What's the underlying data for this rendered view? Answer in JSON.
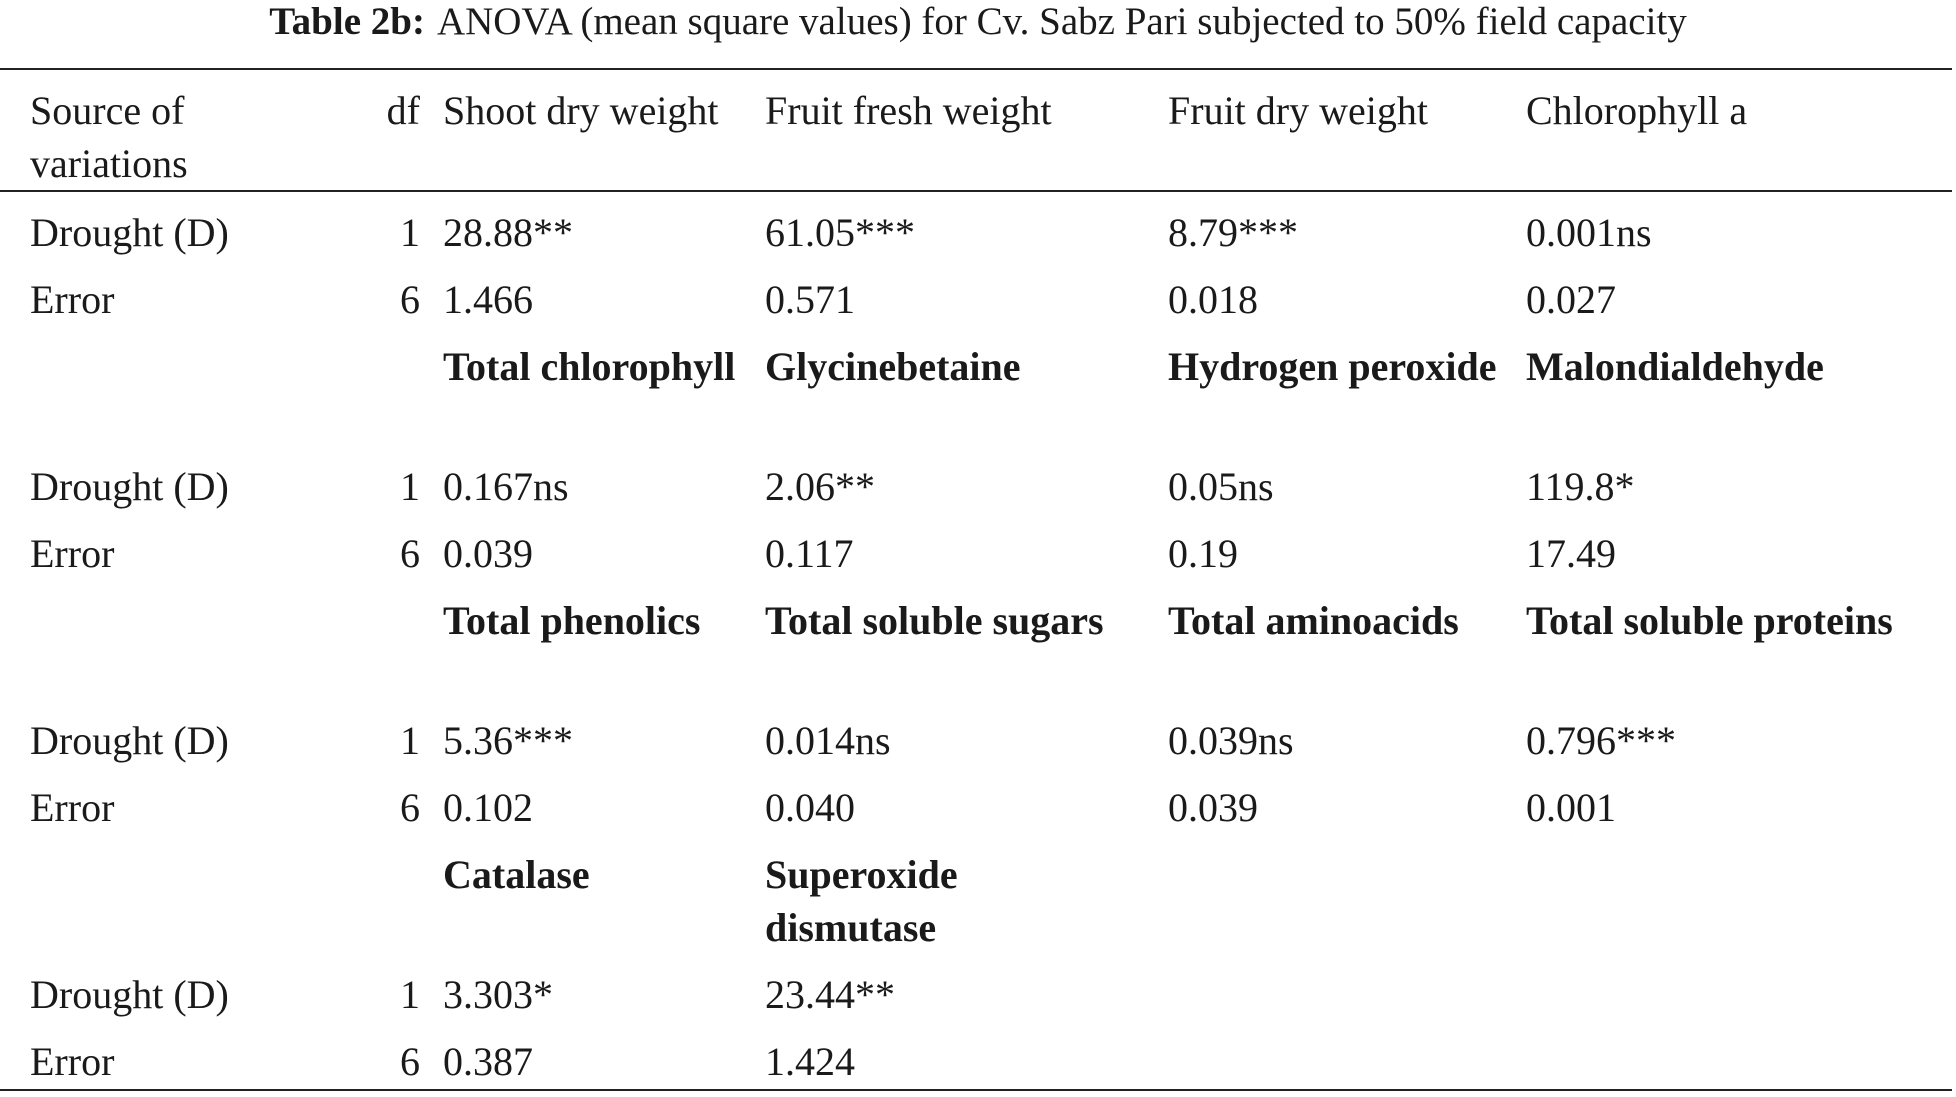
{
  "caption": {
    "label": "Table 2b:",
    "text": "ANOVA (mean square values) for Cv. Sabz Pari subjected to 50% field capacity"
  },
  "table": {
    "header": {
      "source": "Source of variations",
      "df": "df"
    },
    "sections": [
      {
        "variables": [
          "Shoot dry weight",
          "Fruit fresh weight",
          "Fruit dry weight",
          "Chlorophyll a"
        ],
        "rows": [
          {
            "source": "Drought (D)",
            "df": 1,
            "values": [
              "28.88**",
              "61.05***",
              "8.79***",
              "0.001ns"
            ]
          },
          {
            "source": "Error",
            "df": 6,
            "values": [
              "1.466",
              "0.571",
              "0.018",
              "0.027"
            ]
          }
        ]
      },
      {
        "variables": [
          "Total chlorophyll",
          "Glycinebetaine",
          "Hydrogen peroxide",
          "Malondialdehyde"
        ],
        "rows": [
          {
            "source": "Drought (D)",
            "df": 1,
            "values": [
              "0.167ns",
              "2.06**",
              "0.05ns",
              "119.8*"
            ]
          },
          {
            "source": "Error",
            "df": 6,
            "values": [
              "0.039",
              "0.117",
              "0.19",
              "17.49"
            ]
          }
        ]
      },
      {
        "variables": [
          "Total phenolics",
          "Total soluble sugars",
          "Total aminoacids",
          "Total soluble proteins"
        ],
        "rows": [
          {
            "source": "Drought (D)",
            "df": 1,
            "values": [
              "5.36***",
              "0.014ns",
              "0.039ns",
              "0.796***"
            ]
          },
          {
            "source": "Error",
            "df": 6,
            "values": [
              "0.102",
              "0.040",
              "0.039",
              "0.001"
            ]
          }
        ]
      },
      {
        "variables": [
          "Catalase",
          "Superoxide dismutase"
        ],
        "rows": [
          {
            "source": "Drought (D)",
            "df": 1,
            "values": [
              "3.303*",
              "23.44**"
            ]
          },
          {
            "source": "Error",
            "df": 6,
            "values": [
              "0.387",
              "1.424"
            ]
          }
        ]
      }
    ]
  }
}
